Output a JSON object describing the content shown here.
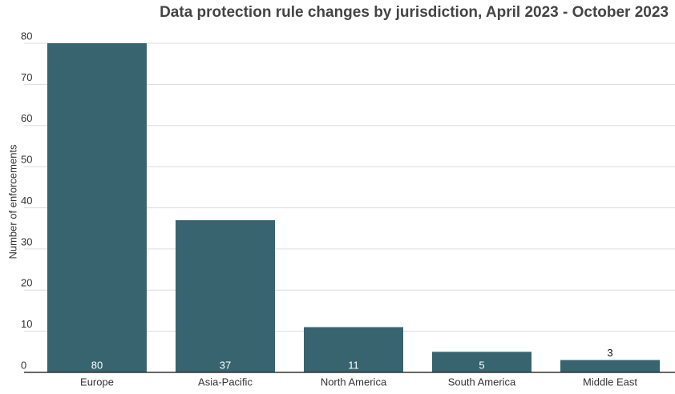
{
  "chart_data": {
    "type": "bar",
    "title": "Data protection rule changes by jurisdiction, April 2023 - October 2023",
    "y_label": "Number of enforcements",
    "categories": [
      "Europe",
      "Asia-Pacific",
      "North America",
      "South America",
      "Middle East"
    ],
    "values": [
      80,
      37,
      11,
      5,
      3
    ],
    "color": "#37646f",
    "ylim": [
      0,
      80
    ],
    "yticks": [
      0,
      10,
      20,
      30,
      40,
      50,
      60,
      70,
      80
    ],
    "grid": true
  }
}
